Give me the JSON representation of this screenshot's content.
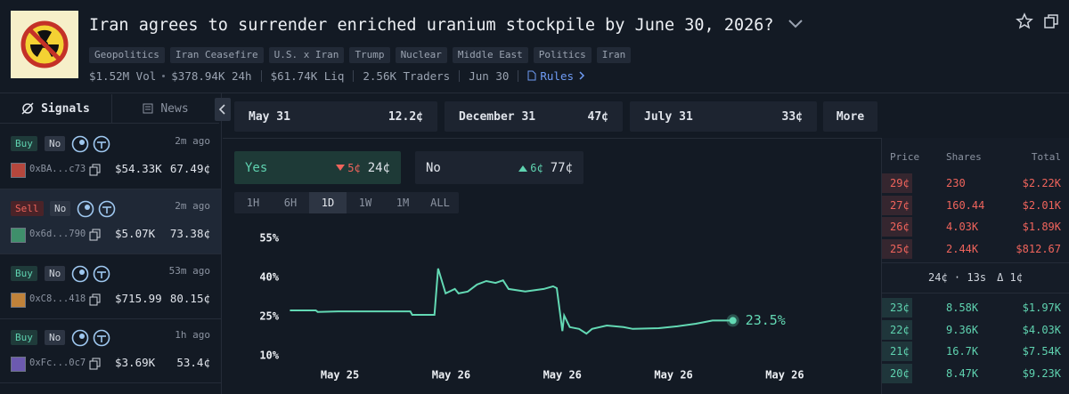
{
  "header": {
    "title": "Iran agrees to surrender enriched uranium stockpile by June 30, 2026?",
    "tags": [
      "Geopolitics",
      "Iran Ceasefire",
      "U.S. x Iran",
      "Trump",
      "Nuclear",
      "Middle East",
      "Politics",
      "Iran"
    ],
    "stats": [
      "$1.52M Vol",
      "$378.94K 24h",
      "$61.74K Liq",
      "2.56K Traders",
      "Jun 30"
    ],
    "rules": "Rules"
  },
  "sidebar": {
    "tabs": [
      "Signals",
      "News"
    ],
    "selected_signal": 1,
    "signals": [
      {
        "side": "Buy",
        "outcome": "No",
        "time": "2m ago",
        "address": "0xBA...c73",
        "amount": "$54.33K",
        "price": "67.49¢"
      },
      {
        "side": "Sell",
        "outcome": "No",
        "time": "2m ago",
        "address": "0x6d...790",
        "amount": "$5.07K",
        "price": "73.38¢"
      },
      {
        "side": "Buy",
        "outcome": "No",
        "time": "53m ago",
        "address": "0xC8...418",
        "amount": "$715.99",
        "price": "80.15¢"
      },
      {
        "side": "Buy",
        "outcome": "No",
        "time": "1h ago",
        "address": "0xFc...0c7",
        "amount": "$3.69K",
        "price": "53.4¢"
      }
    ]
  },
  "outcomes": {
    "items": [
      {
        "label": "May 31",
        "price": "12.2¢"
      },
      {
        "label": "December 31",
        "price": "47¢"
      },
      {
        "label": "July 31",
        "price": "33¢"
      }
    ],
    "more": "More"
  },
  "trade": {
    "yes": {
      "label": "Yes",
      "change": "5¢",
      "direction": "down",
      "price": "24¢"
    },
    "no": {
      "label": "No",
      "change": "6¢",
      "direction": "up",
      "price": "77¢"
    }
  },
  "ranges": {
    "items": [
      "1H",
      "6H",
      "1D",
      "1W",
      "1M",
      "ALL"
    ],
    "active": 2
  },
  "chart_data": {
    "type": "line",
    "color": "#63d9b4",
    "x": [
      -2.7,
      -1.3,
      -1.2,
      -0.1,
      3.8,
      3.9,
      5.1,
      5.3,
      5.7,
      6.2,
      6.4,
      6.9,
      7.4,
      7.9,
      8.4,
      8.8,
      9.1,
      10.0,
      11.0,
      11.5,
      11.7,
      12.0,
      12.1,
      12.4,
      12.9,
      13.3,
      13.6,
      14.4,
      15.3,
      15.8,
      17.2,
      18.2,
      19.2,
      20.1,
      21.2
    ],
    "values": [
      27.4,
      27.4,
      26.8,
      27.0,
      27.0,
      25.7,
      25.7,
      43.4,
      33.9,
      35.6,
      33.9,
      34.6,
      37.3,
      38.6,
      37.9,
      38.9,
      35.6,
      34.6,
      35.6,
      36.6,
      35.9,
      19.5,
      25.4,
      21,
      20.3,
      18.5,
      20.3,
      21.6,
      21,
      20.3,
      20.6,
      21.3,
      22.3,
      23.5,
      23.5
    ],
    "value_labels": [
      null,
      null,
      null,
      null,
      null,
      null,
      null,
      null,
      null,
      null,
      null,
      null,
      null,
      null,
      null,
      null,
      null,
      null,
      null,
      null,
      null,
      null,
      null,
      null,
      null,
      null,
      null,
      null,
      null,
      null,
      null,
      null,
      null,
      null,
      "23.5%"
    ],
    "xlim": [
      -4.4,
      29
    ],
    "xticks": [
      {
        "value": 0,
        "label": "May 25"
      },
      {
        "value": 6,
        "label": "May 26"
      },
      {
        "value": 12,
        "label": "May 26"
      },
      {
        "value": 18,
        "label": "May 26"
      },
      {
        "value": 24,
        "label": "May 26"
      }
    ],
    "ylim": [
      8,
      58
    ],
    "yticks": [
      {
        "value": 10,
        "label": "10%"
      },
      {
        "value": 25,
        "label": "25%"
      },
      {
        "value": 40,
        "label": "40%"
      },
      {
        "value": 55,
        "label": "55%"
      }
    ],
    "grid": false
  },
  "order_book": {
    "columns": [
      "Price",
      "Shares",
      "Total"
    ],
    "asks": [
      [
        "29¢",
        "230",
        "$2.22K"
      ],
      [
        "27¢",
        "160.44",
        "$2.01K"
      ],
      [
        "26¢",
        "4.03K",
        "$1.89K"
      ],
      [
        "25¢",
        "2.44K",
        "$812.67"
      ]
    ],
    "spread": "24¢ · 13s",
    "spread_change": "Δ 1¢",
    "bids": [
      [
        "23¢",
        "8.58K",
        "$1.97K"
      ],
      [
        "22¢",
        "9.36K",
        "$4.03K"
      ],
      [
        "21¢",
        "16.7K",
        "$7.54K"
      ],
      [
        "20¢",
        "8.47K",
        "$9.23K"
      ]
    ]
  }
}
